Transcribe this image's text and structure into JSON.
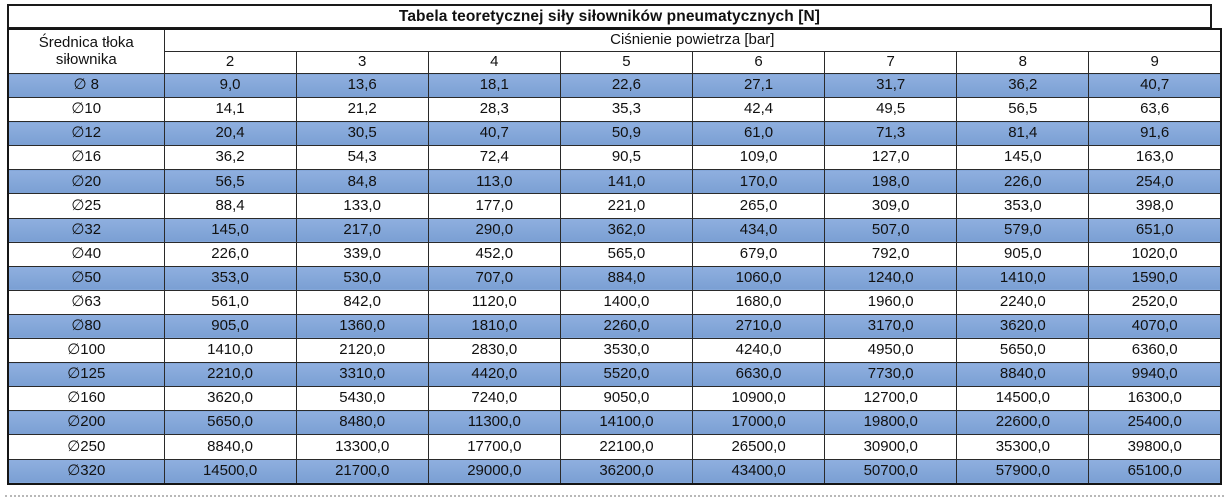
{
  "table": {
    "title": "Tabela teoretycznej siły siłowników pneumatycznych [N]",
    "diameter_header": "Średnica tłoka siłownika",
    "pressure_header": "Ciśnienie powietrza [bar]",
    "pressures": [
      "2",
      "3",
      "4",
      "5",
      "6",
      "7",
      "8",
      "9"
    ],
    "rows": [
      {
        "diameter": "∅ 8",
        "values": [
          "9,0",
          "13,6",
          "18,1",
          "22,6",
          "27,1",
          "31,7",
          "36,2",
          "40,7"
        ]
      },
      {
        "diameter": "∅10",
        "values": [
          "14,1",
          "21,2",
          "28,3",
          "35,3",
          "42,4",
          "49,5",
          "56,5",
          "63,6"
        ]
      },
      {
        "diameter": "∅12",
        "values": [
          "20,4",
          "30,5",
          "40,7",
          "50,9",
          "61,0",
          "71,3",
          "81,4",
          "91,6"
        ]
      },
      {
        "diameter": "∅16",
        "values": [
          "36,2",
          "54,3",
          "72,4",
          "90,5",
          "109,0",
          "127,0",
          "145,0",
          "163,0"
        ]
      },
      {
        "diameter": "∅20",
        "values": [
          "56,5",
          "84,8",
          "113,0",
          "141,0",
          "170,0",
          "198,0",
          "226,0",
          "254,0"
        ]
      },
      {
        "diameter": "∅25",
        "values": [
          "88,4",
          "133,0",
          "177,0",
          "221,0",
          "265,0",
          "309,0",
          "353,0",
          "398,0"
        ]
      },
      {
        "diameter": "∅32",
        "values": [
          "145,0",
          "217,0",
          "290,0",
          "362,0",
          "434,0",
          "507,0",
          "579,0",
          "651,0"
        ]
      },
      {
        "diameter": "∅40",
        "values": [
          "226,0",
          "339,0",
          "452,0",
          "565,0",
          "679,0",
          "792,0",
          "905,0",
          "1020,0"
        ]
      },
      {
        "diameter": "∅50",
        "values": [
          "353,0",
          "530,0",
          "707,0",
          "884,0",
          "1060,0",
          "1240,0",
          "1410,0",
          "1590,0"
        ]
      },
      {
        "diameter": "∅63",
        "values": [
          "561,0",
          "842,0",
          "1120,0",
          "1400,0",
          "1680,0",
          "1960,0",
          "2240,0",
          "2520,0"
        ]
      },
      {
        "diameter": "∅80",
        "values": [
          "905,0",
          "1360,0",
          "1810,0",
          "2260,0",
          "2710,0",
          "3170,0",
          "3620,0",
          "4070,0"
        ]
      },
      {
        "diameter": "∅100",
        "values": [
          "1410,0",
          "2120,0",
          "2830,0",
          "3530,0",
          "4240,0",
          "4950,0",
          "5650,0",
          "6360,0"
        ]
      },
      {
        "diameter": "∅125",
        "values": [
          "2210,0",
          "3310,0",
          "4420,0",
          "5520,0",
          "6630,0",
          "7730,0",
          "8840,0",
          "9940,0"
        ]
      },
      {
        "diameter": "∅160",
        "values": [
          "3620,0",
          "5430,0",
          "7240,0",
          "9050,0",
          "10900,0",
          "12700,0",
          "14500,0",
          "16300,0"
        ]
      },
      {
        "diameter": "∅200",
        "values": [
          "5650,0",
          "8480,0",
          "11300,0",
          "14100,0",
          "17000,0",
          "19800,0",
          "22600,0",
          "25400,0"
        ]
      },
      {
        "diameter": "∅250",
        "values": [
          "8840,0",
          "13300,0",
          "17700,0",
          "22100,0",
          "26500,0",
          "30900,0",
          "35300,0",
          "39800,0"
        ]
      },
      {
        "diameter": "∅320",
        "values": [
          "14500,0",
          "21700,0",
          "29000,0",
          "36200,0",
          "43400,0",
          "50700,0",
          "57900,0",
          "65100,0"
        ]
      }
    ],
    "colors": {
      "row_blue": "#7EA4D8",
      "row_white": "#FFFFFF",
      "border": "#2A2A2A",
      "text": "#111111"
    }
  }
}
